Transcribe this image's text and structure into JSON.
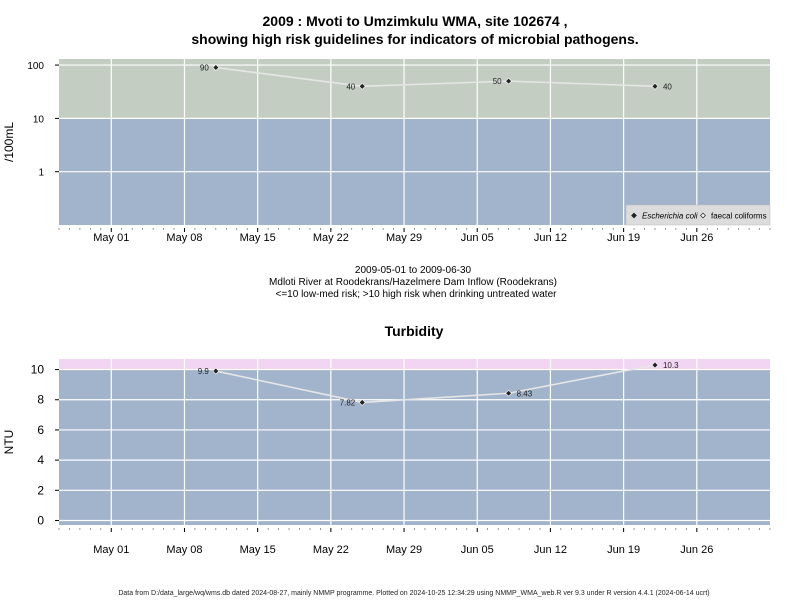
{
  "chart_data": [
    {
      "type": "line",
      "title": "2009 : Mvoti to Umzimkulu WMA, site 102674 ,",
      "subtitle": "showing high risk guidelines for indicators of microbial pathogens.",
      "ylabel": "/100mL",
      "yscale": "log",
      "ylim": [
        0.1,
        130
      ],
      "yticks": [
        1,
        10,
        100
      ],
      "ytick_labels": [
        "1",
        "10",
        "100"
      ],
      "xlim": [
        "2009-04-26",
        "2009-07-03"
      ],
      "xticks": [
        "2009-05-01",
        "2009-05-08",
        "2009-05-15",
        "2009-05-22",
        "2009-05-29",
        "2009-06-05",
        "2009-06-12",
        "2009-06-19",
        "2009-06-26"
      ],
      "xtick_labels": [
        "May 01",
        "May 08",
        "May 15",
        "May 22",
        "May 29",
        "Jun 05",
        "Jun 12",
        "Jun 19",
        "Jun 26"
      ],
      "bands": [
        {
          "from": 0.1,
          "to": 10,
          "color": "#a2b3cc"
        },
        {
          "from": 10,
          "to": 130,
          "color": "#c3cdc2"
        }
      ],
      "series": [
        {
          "name": "Escherichia coli",
          "x": [
            "2009-05-11",
            "2009-05-25",
            "2009-06-08",
            "2009-06-22"
          ],
          "y": [
            90,
            40,
            50,
            40
          ],
          "labels": [
            "90",
            "40",
            "50",
            "40"
          ],
          "label_side": [
            "left",
            "left",
            "left",
            "right"
          ]
        }
      ],
      "legend": {
        "placement": "bottom-right",
        "entries": [
          {
            "label": "Escherichia coli",
            "marker": "filled-diamond",
            "italic": true
          },
          {
            "label": "faecal coliforms",
            "marker": "open-diamond",
            "italic": false
          }
        ]
      },
      "grid": true,
      "caption": [
        "2009-05-01 to 2009-06-30",
        "Mdloti River at Roodekrans/Hazelmere Dam Inflow (Roodekrans)",
        "<=10 low-med risk; >10 high risk when drinking untreated water"
      ]
    },
    {
      "type": "line",
      "title": "Turbidity",
      "ylabel": "NTU",
      "ylim": [
        -0.3,
        10.7
      ],
      "yticks": [
        0,
        2,
        4,
        6,
        8,
        10
      ],
      "ytick_labels": [
        "0",
        "2",
        "4",
        "6",
        "8",
        "10"
      ],
      "xlim": [
        "2009-04-26",
        "2009-07-03"
      ],
      "xticks": [
        "2009-05-01",
        "2009-05-08",
        "2009-05-15",
        "2009-05-22",
        "2009-05-29",
        "2009-06-05",
        "2009-06-12",
        "2009-06-19",
        "2009-06-26"
      ],
      "xtick_labels": [
        "May 01",
        "May 08",
        "May 15",
        "May 22",
        "May 29",
        "Jun 05",
        "Jun 12",
        "Jun 19",
        "Jun 26"
      ],
      "bands": [
        {
          "from": -0.3,
          "to": 10,
          "color": "#a2b3cc"
        },
        {
          "from": 10,
          "to": 10.7,
          "color": "#f2d5f2"
        }
      ],
      "series": [
        {
          "x": [
            "2009-05-11",
            "2009-05-25",
            "2009-06-08",
            "2009-06-22"
          ],
          "y": [
            9.9,
            7.82,
            8.43,
            10.3
          ],
          "labels": [
            "9.9",
            "7.82",
            "8.43",
            "10.3"
          ],
          "label_side": [
            "left",
            "left",
            "right",
            "right"
          ]
        }
      ],
      "grid": true
    }
  ],
  "footer": "Data from D:/data_large/wq/wms.db dated 2024-08-27, mainly NMMP programme. Plotted on 2024-10-25 12:34:29 using NMMP_WMA_web.R ver 9.3 under R version 4.4.1 (2024-06-14 ucrt)",
  "colors": {
    "point": "#222222",
    "line": "#e6e6e6",
    "grid": "#ffffff"
  }
}
